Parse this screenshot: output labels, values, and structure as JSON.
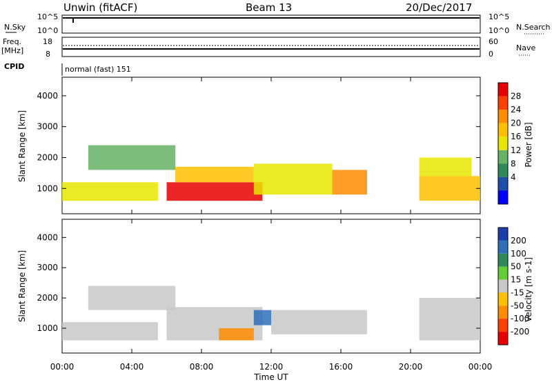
{
  "header": {
    "station": "Unwin (fitACF)",
    "beam": "Beam 13",
    "date": "20/Dec/2017"
  },
  "status_panel": {
    "nsky_label": "N.Sky",
    "nsearch_label": "N.Search",
    "freq_label": "Freq.",
    "freq_unit": "[MHz]",
    "nave_label": "Nave",
    "cpid_label": "CPID",
    "cpid_value": "normal (fast) 151",
    "noise_ticks": [
      "10^5",
      "10^0"
    ],
    "freq_ticks": [
      "18",
      "8"
    ],
    "nave_ticks": [
      "60",
      "0"
    ]
  },
  "chart_data": [
    {
      "type": "heatmap",
      "name": "power",
      "ylabel": "Slant Range [km]",
      "xlabel": "Time UT",
      "x_ticks": [
        "00:00",
        "04:00",
        "08:00",
        "12:00",
        "16:00",
        "20:00",
        "00:00"
      ],
      "x_range_hours": [
        0,
        24
      ],
      "ylim": [
        180,
        4600
      ],
      "y_ticks": [
        1000,
        2000,
        3000,
        4000
      ],
      "colorbar": {
        "label": "Power [dB]",
        "ticks": [
          "28",
          "24",
          "20",
          "16",
          "12",
          "8",
          "4"
        ],
        "colors": [
          "#e60000",
          "#ff4000",
          "#ff8c00",
          "#ffc000",
          "#e6e600",
          "#66b366",
          "#2e8b57",
          "#1f4fa8",
          "#0000ff"
        ]
      },
      "echo_bands": [
        {
          "t0": 0.0,
          "t1": 5.5,
          "r0": 600,
          "r1": 1200,
          "level": 14
        },
        {
          "t0": 1.5,
          "t1": 6.5,
          "r0": 1600,
          "r1": 2400,
          "level": 10
        },
        {
          "t0": 6.0,
          "t1": 11.5,
          "r0": 600,
          "r1": 1200,
          "level": 28
        },
        {
          "t0": 6.5,
          "t1": 11.0,
          "r0": 1200,
          "r1": 1700,
          "level": 18
        },
        {
          "t0": 11.0,
          "t1": 15.5,
          "r0": 800,
          "r1": 1800,
          "level": 14
        },
        {
          "t0": 15.5,
          "t1": 17.5,
          "r0": 800,
          "r1": 1600,
          "level": 22
        },
        {
          "t0": 20.5,
          "t1": 24.0,
          "r0": 600,
          "r1": 1400,
          "level": 18
        },
        {
          "t0": 20.5,
          "t1": 23.5,
          "r0": 1400,
          "r1": 2000,
          "level": 12
        }
      ]
    },
    {
      "type": "heatmap",
      "name": "velocity",
      "ylabel": "Slant Range [km]",
      "xlabel": "Time UT",
      "x_ticks": [
        "00:00",
        "04:00",
        "08:00",
        "12:00",
        "16:00",
        "20:00",
        "00:00"
      ],
      "x_range_hours": [
        0,
        24
      ],
      "ylim": [
        180,
        4600
      ],
      "y_ticks": [
        1000,
        2000,
        3000,
        4000
      ],
      "colorbar": {
        "label": "Velocity [m s-1]",
        "ticks": [
          "200",
          "100",
          "50",
          "15",
          "-15",
          "-50",
          "-100",
          "-200"
        ],
        "colors": [
          "#1b3fa8",
          "#2e6fb8",
          "#2e8b57",
          "#66cc33",
          "#c8c8c8",
          "#ffc000",
          "#ff8c00",
          "#ff4000",
          "#e60000"
        ]
      },
      "echo_bands": [
        {
          "t0": 0.0,
          "t1": 5.5,
          "r0": 600,
          "r1": 1200,
          "level": 0
        },
        {
          "t0": 1.5,
          "t1": 6.5,
          "r0": 1600,
          "r1": 2400,
          "level": 0
        },
        {
          "t0": 6.0,
          "t1": 11.5,
          "r0": 600,
          "r1": 1700,
          "level": 0
        },
        {
          "t0": 9.0,
          "t1": 11.0,
          "r0": 600,
          "r1": 1000,
          "level": -60
        },
        {
          "t0": 11.0,
          "t1": 12.0,
          "r0": 1100,
          "r1": 1600,
          "level": 150
        },
        {
          "t0": 12.0,
          "t1": 17.5,
          "r0": 800,
          "r1": 1600,
          "level": 0
        },
        {
          "t0": 20.5,
          "t1": 24.0,
          "r0": 600,
          "r1": 2000,
          "level": 0
        }
      ]
    }
  ]
}
